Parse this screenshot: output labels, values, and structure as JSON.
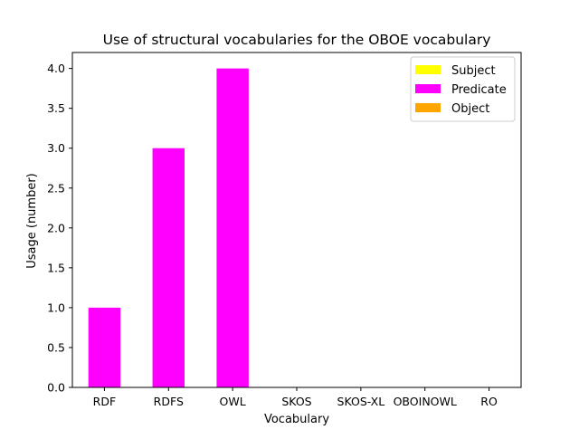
{
  "chart_data": {
    "type": "bar",
    "title": "Use of structural vocabularies for the OBOE vocabulary",
    "xlabel": "Vocabulary",
    "ylabel": "Usage (number)",
    "categories": [
      "RDF",
      "RDFS",
      "OWL",
      "SKOS",
      "SKOS-XL",
      "OBOINOWL",
      "RO"
    ],
    "series": [
      {
        "name": "Subject",
        "color": "#ffff00",
        "values": [
          0,
          0,
          0,
          0,
          0,
          0,
          0
        ]
      },
      {
        "name": "Predicate",
        "color": "#ff00ff",
        "values": [
          1,
          3,
          4,
          0,
          0,
          0,
          0
        ]
      },
      {
        "name": "Object",
        "color": "#ffa500",
        "values": [
          0,
          0,
          0,
          0,
          0,
          0,
          0
        ]
      }
    ],
    "ylim": [
      0,
      4.2
    ],
    "yticks": [
      "0.0",
      "0.5",
      "1.0",
      "1.5",
      "2.0",
      "2.5",
      "3.0",
      "3.5",
      "4.0"
    ],
    "stacked": true,
    "grid": false,
    "legend_position": "top-right"
  }
}
